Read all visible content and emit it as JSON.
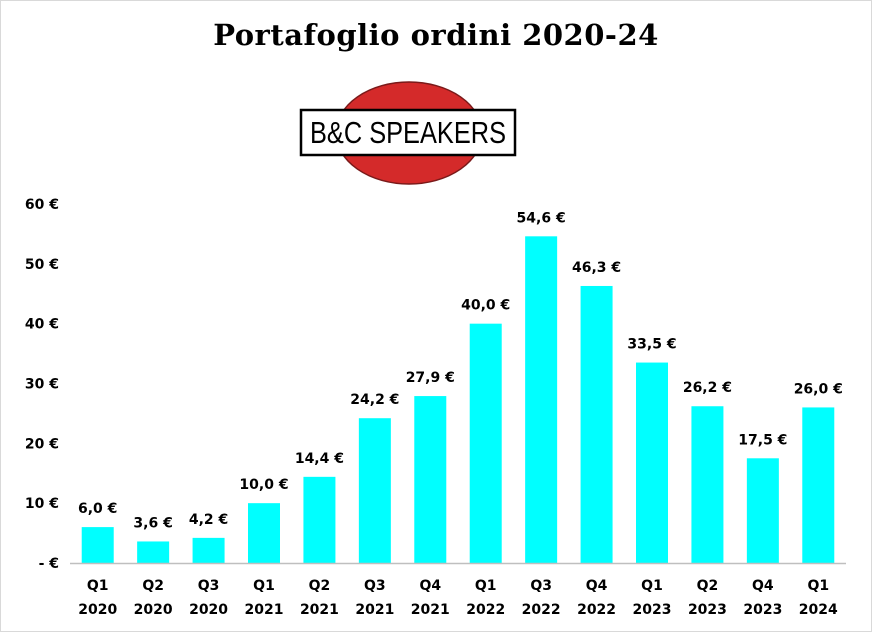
{
  "chart_data": {
    "type": "bar",
    "title": "Portafoglio ordini 2020-24",
    "logo_text": "B&C SPEAKERS",
    "categories": [
      [
        "Q1",
        "2020"
      ],
      [
        "Q2",
        "2020"
      ],
      [
        "Q3",
        "2020"
      ],
      [
        "Q1",
        "2021"
      ],
      [
        "Q2",
        "2021"
      ],
      [
        "Q3",
        "2021"
      ],
      [
        "Q4",
        "2021"
      ],
      [
        "Q1",
        "2022"
      ],
      [
        "Q3",
        "2022"
      ],
      [
        "Q4",
        "2022"
      ],
      [
        "Q1",
        "2023"
      ],
      [
        "Q2",
        "2023"
      ],
      [
        "Q4",
        "2023"
      ],
      [
        "Q1",
        "2024"
      ]
    ],
    "values": [
      6.0,
      3.6,
      4.2,
      10.0,
      14.4,
      24.2,
      27.9,
      40.0,
      54.6,
      46.3,
      33.5,
      26.2,
      17.5,
      26.0
    ],
    "data_labels": [
      "6,0 €",
      "3,6 €",
      "4,2 €",
      "10,0 €",
      "14,4 €",
      "24,2 €",
      "27,9 €",
      "40,0 €",
      "54,6 €",
      "46,3 €",
      "33,5 €",
      "26,2 €",
      "17,5 €",
      "26,0 €"
    ],
    "y_ticks": [
      {
        "value": 0,
        "label": "- €"
      },
      {
        "value": 10,
        "label": "10 €"
      },
      {
        "value": 20,
        "label": "20 €"
      },
      {
        "value": 30,
        "label": "30 €"
      },
      {
        "value": 40,
        "label": "40 €"
      },
      {
        "value": 50,
        "label": "50 €"
      },
      {
        "value": 60,
        "label": "60 €"
      }
    ],
    "ylim": [
      0,
      60
    ],
    "grid": false,
    "bar_color": "#00FFFF",
    "logo_colors": {
      "circle": "#D42A2A",
      "border": "#000000",
      "box": "#FFFFFF"
    }
  }
}
